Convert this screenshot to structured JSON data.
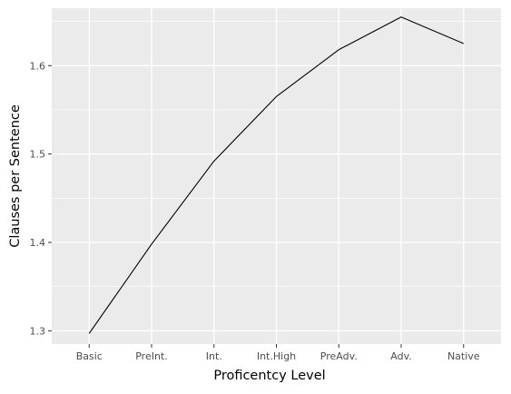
{
  "chart_data": {
    "type": "line",
    "title": "",
    "xlabel": "Proficentcy Level",
    "ylabel": "Clauses per Sentence",
    "categories": [
      "Basic",
      "PreInt.",
      "Int.",
      "Int.High",
      "PreAdv.",
      "Adv.",
      "Native"
    ],
    "series": [
      {
        "values": [
          1.297,
          1.398,
          1.492,
          1.565,
          1.618,
          1.655,
          1.625
        ]
      }
    ],
    "ylim": [
      1.285,
      1.665
    ],
    "yticks": [
      1.3,
      1.4,
      1.5,
      1.6
    ],
    "ytick_labels": [
      "1.3",
      "1.4",
      "1.5",
      "1.6"
    ],
    "grid": true,
    "legend": "none",
    "colors": {
      "panel_background": "#ebebeb",
      "grid_major": "#ffffff",
      "line": "#000000",
      "tick_text": "#4d4d4d",
      "tick_mark": "#333333",
      "axis_title": "#000000"
    }
  }
}
